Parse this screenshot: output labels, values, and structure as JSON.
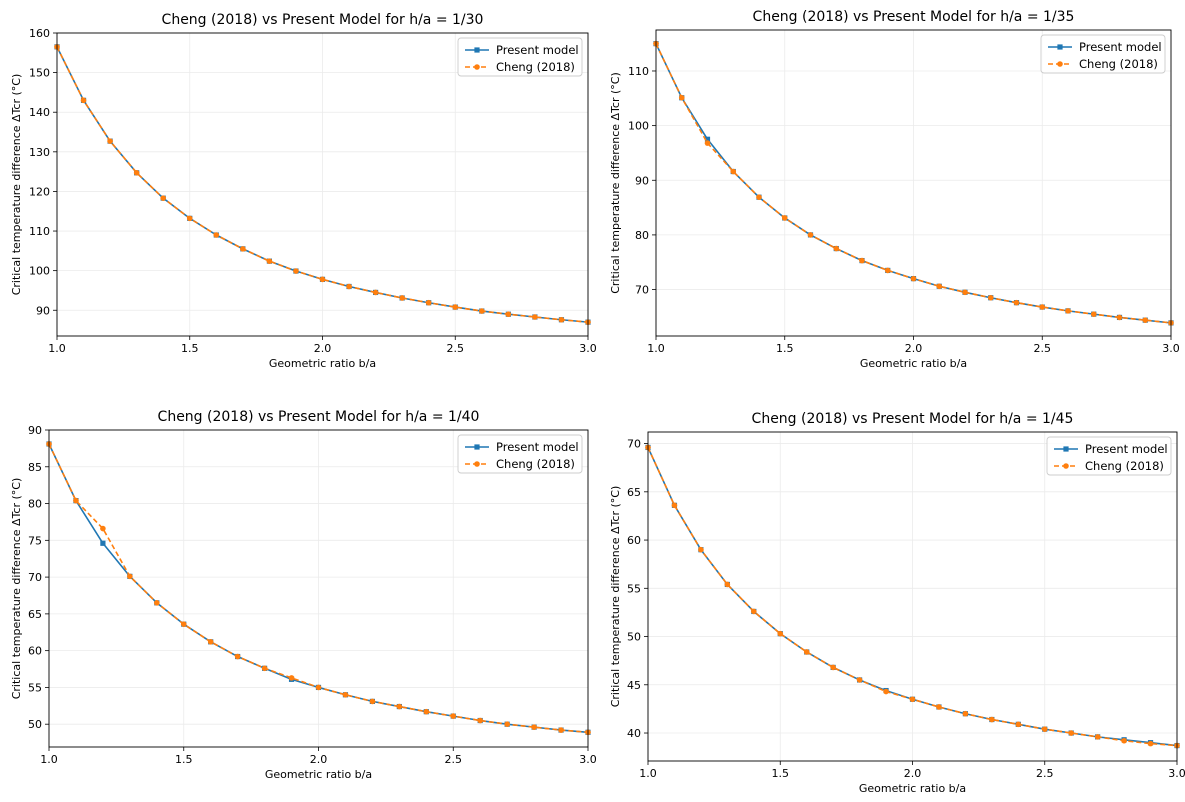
{
  "chart_data": [
    {
      "type": "line",
      "title": "Cheng (2018) vs Present Model for h/a = 1/30",
      "xlabel": "Geometric ratio b/a",
      "ylabel": "Critical temperature difference ΔTcr (°C)",
      "xlim": [
        1.0,
        3.0
      ],
      "ylim": [
        83.5,
        160
      ],
      "xticks": [
        1.0,
        1.5,
        2.0,
        2.5,
        3.0
      ],
      "xtick_labels": [
        "1.0",
        "1.5",
        "2.0",
        "2.5",
        "3.0"
      ],
      "yticks": [
        90,
        100,
        110,
        120,
        130,
        140,
        150,
        160
      ],
      "ytick_labels": [
        "90",
        "100",
        "110",
        "120",
        "130",
        "140",
        "150",
        "160"
      ],
      "grid": true,
      "legend": "top-right",
      "x": [
        1.0,
        1.1,
        1.2,
        1.3,
        1.4,
        1.5,
        1.6,
        1.7,
        1.8,
        1.9,
        2.0,
        2.1,
        2.2,
        2.3,
        2.4,
        2.5,
        2.6,
        2.7,
        2.8,
        2.9,
        3.0
      ],
      "series": [
        {
          "name": "Present model",
          "color": "#1f77b4",
          "linestyle": "solid",
          "marker": "square",
          "values": [
            156.5,
            143.0,
            132.7,
            124.7,
            118.3,
            113.2,
            109.0,
            105.5,
            102.4,
            99.9,
            97.8,
            96.0,
            94.5,
            93.1,
            91.9,
            90.8,
            89.8,
            89.0,
            88.3,
            87.6,
            87.0
          ]
        },
        {
          "name": "Cheng (2018)",
          "color": "#ff7f0e",
          "linestyle": "dashed",
          "marker": "circle",
          "values": [
            156.5,
            143.0,
            132.7,
            124.7,
            118.3,
            113.2,
            109.0,
            105.5,
            102.4,
            99.9,
            97.8,
            96.0,
            94.5,
            93.1,
            91.9,
            90.8,
            89.8,
            89.0,
            88.3,
            87.6,
            87.0
          ]
        }
      ]
    },
    {
      "type": "line",
      "title": "Cheng (2018) vs Present Model for h/a = 1/35",
      "xlabel": "Geometric ratio b/a",
      "ylabel": "Critical temperature difference ΔTcr (°C)",
      "xlim": [
        1.0,
        3.0
      ],
      "ylim": [
        61.5,
        117.5
      ],
      "xticks": [
        1.0,
        1.5,
        2.0,
        2.5,
        3.0
      ],
      "xtick_labels": [
        "1.0",
        "1.5",
        "2.0",
        "2.5",
        "3.0"
      ],
      "yticks": [
        70,
        80,
        90,
        100,
        110
      ],
      "ytick_labels": [
        "70",
        "80",
        "90",
        "100",
        "110"
      ],
      "grid": true,
      "legend": "top-right",
      "x": [
        1.0,
        1.1,
        1.2,
        1.3,
        1.4,
        1.5,
        1.6,
        1.7,
        1.8,
        1.9,
        2.0,
        2.1,
        2.2,
        2.3,
        2.4,
        2.5,
        2.6,
        2.7,
        2.8,
        2.9,
        3.0
      ],
      "series": [
        {
          "name": "Present model",
          "color": "#1f77b4",
          "linestyle": "solid",
          "marker": "square",
          "values": [
            115.0,
            105.1,
            97.5,
            91.6,
            86.9,
            83.1,
            80.0,
            77.5,
            75.3,
            73.5,
            72.0,
            70.6,
            69.5,
            68.5,
            67.6,
            66.8,
            66.1,
            65.5,
            64.9,
            64.4,
            63.9
          ]
        },
        {
          "name": "Cheng (2018)",
          "color": "#ff7f0e",
          "linestyle": "dashed",
          "marker": "circle",
          "values": [
            115.0,
            105.1,
            96.8,
            91.6,
            86.9,
            83.1,
            80.0,
            77.5,
            75.3,
            73.5,
            72.0,
            70.6,
            69.5,
            68.5,
            67.6,
            66.8,
            66.1,
            65.5,
            64.9,
            64.4,
            63.9
          ]
        }
      ]
    },
    {
      "type": "line",
      "title": "Cheng (2018) vs Present Model for h/a = 1/40",
      "xlabel": "Geometric ratio b/a",
      "ylabel": "Critical temperature difference ΔTcr (°C)",
      "xlim": [
        1.0,
        3.0
      ],
      "ylim": [
        46.9,
        90
      ],
      "xticks": [
        1.0,
        1.5,
        2.0,
        2.5,
        3.0
      ],
      "xtick_labels": [
        "1.0",
        "1.5",
        "2.0",
        "2.5",
        "3.0"
      ],
      "yticks": [
        50,
        55,
        60,
        65,
        70,
        75,
        80,
        85,
        90
      ],
      "ytick_labels": [
        "50",
        "55",
        "60",
        "65",
        "70",
        "75",
        "80",
        "85",
        "90"
      ],
      "grid": true,
      "legend": "top-right",
      "x": [
        1.0,
        1.1,
        1.2,
        1.3,
        1.4,
        1.5,
        1.6,
        1.7,
        1.8,
        1.9,
        2.0,
        2.1,
        2.2,
        2.3,
        2.4,
        2.5,
        2.6,
        2.7,
        2.8,
        2.9,
        3.0
      ],
      "series": [
        {
          "name": "Present model",
          "color": "#1f77b4",
          "linestyle": "solid",
          "marker": "square",
          "values": [
            88.1,
            80.4,
            74.6,
            70.1,
            66.5,
            63.6,
            61.2,
            59.2,
            57.6,
            56.1,
            55.0,
            54.0,
            53.1,
            52.4,
            51.7,
            51.1,
            50.5,
            50.0,
            49.6,
            49.2,
            48.9
          ]
        },
        {
          "name": "Cheng (2018)",
          "color": "#ff7f0e",
          "linestyle": "dashed",
          "marker": "circle",
          "values": [
            88.1,
            80.4,
            76.6,
            70.1,
            66.5,
            63.6,
            61.2,
            59.2,
            57.6,
            56.3,
            55.0,
            54.0,
            53.1,
            52.4,
            51.7,
            51.1,
            50.5,
            50.0,
            49.6,
            49.2,
            48.9
          ]
        }
      ]
    },
    {
      "type": "line",
      "title": "Cheng (2018) vs Present Model for h/a = 1/45",
      "xlabel": "Geometric ratio b/a",
      "ylabel": "Critical temperature difference ΔTcr (°C)",
      "xlim": [
        1.0,
        3.0
      ],
      "ylim": [
        37.1,
        71.2
      ],
      "xticks": [
        1.0,
        1.5,
        2.0,
        2.5,
        3.0
      ],
      "xtick_labels": [
        "1.0",
        "1.5",
        "2.0",
        "2.5",
        "3.0"
      ],
      "yticks": [
        40,
        45,
        50,
        55,
        60,
        65,
        70
      ],
      "ytick_labels": [
        "40",
        "45",
        "50",
        "55",
        "60",
        "65",
        "70"
      ],
      "grid": true,
      "legend": "top-right",
      "x": [
        1.0,
        1.1,
        1.2,
        1.3,
        1.4,
        1.5,
        1.6,
        1.7,
        1.8,
        1.9,
        2.0,
        2.1,
        2.2,
        2.3,
        2.4,
        2.5,
        2.6,
        2.7,
        2.8,
        2.9,
        3.0
      ],
      "series": [
        {
          "name": "Present model",
          "color": "#1f77b4",
          "linestyle": "solid",
          "marker": "square",
          "values": [
            69.6,
            63.6,
            59.0,
            55.4,
            52.6,
            50.3,
            48.4,
            46.8,
            45.5,
            44.4,
            43.5,
            42.7,
            42.0,
            41.4,
            40.9,
            40.4,
            40.0,
            39.6,
            39.3,
            39.0,
            38.7
          ]
        },
        {
          "name": "Cheng (2018)",
          "color": "#ff7f0e",
          "linestyle": "dashed",
          "marker": "circle",
          "values": [
            69.6,
            63.6,
            59.0,
            55.4,
            52.6,
            50.3,
            48.4,
            46.8,
            45.5,
            44.3,
            43.5,
            42.7,
            42.0,
            41.4,
            40.9,
            40.4,
            40.0,
            39.6,
            39.2,
            38.9,
            38.7
          ]
        }
      ]
    }
  ]
}
